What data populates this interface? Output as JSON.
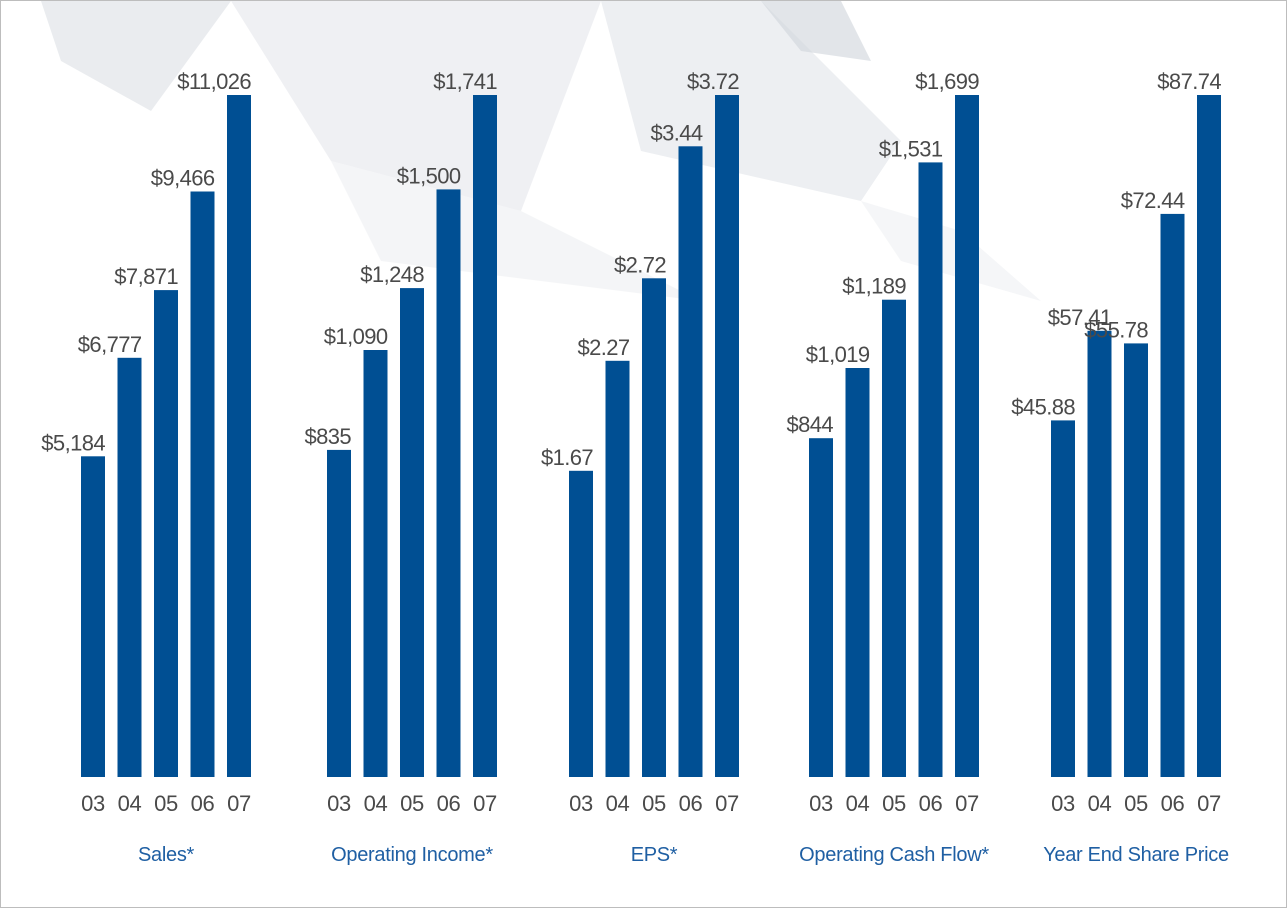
{
  "colors": {
    "bar": "#004f93",
    "value_text": "#4a4a4a",
    "title_text": "#1f5fa3",
    "background": "#ffffff",
    "decoration": "#d9dce2"
  },
  "chart_data": [
    {
      "type": "bar",
      "title": "Sales*",
      "categories": [
        "03",
        "04",
        "05",
        "06",
        "07"
      ],
      "values": [
        5184,
        6777,
        7871,
        9466,
        11026
      ],
      "value_labels": [
        "$5,184",
        "$6,777",
        "$7,871",
        "$9,466",
        "$11,026"
      ],
      "ylim": [
        0,
        11026
      ],
      "grid": false,
      "legend": "none"
    },
    {
      "type": "bar",
      "title": "Operating Income*",
      "categories": [
        "03",
        "04",
        "05",
        "06",
        "07"
      ],
      "values": [
        835,
        1090,
        1248,
        1500,
        1741
      ],
      "value_labels": [
        "$835",
        "$1,090",
        "$1,248",
        "$1,500",
        "$1,741"
      ],
      "ylim": [
        0,
        1741
      ],
      "grid": false,
      "legend": "none"
    },
    {
      "type": "bar",
      "title": "EPS*",
      "categories": [
        "03",
        "04",
        "05",
        "06",
        "07"
      ],
      "values": [
        1.67,
        2.27,
        2.72,
        3.44,
        3.72
      ],
      "value_labels": [
        "$1.67",
        "$2.27",
        "$2.72",
        "$3.44",
        "$3.72"
      ],
      "ylim": [
        0,
        3.72
      ],
      "grid": false,
      "legend": "none"
    },
    {
      "type": "bar",
      "title": "Operating Cash Flow*",
      "categories": [
        "03",
        "04",
        "05",
        "06",
        "07"
      ],
      "values": [
        844,
        1019,
        1189,
        1531,
        1699
      ],
      "value_labels": [
        "$844",
        "$1,019",
        "$1,189",
        "$1,531",
        "$1,699"
      ],
      "ylim": [
        0,
        1699
      ],
      "grid": false,
      "legend": "none"
    },
    {
      "type": "bar",
      "title": "Year End Share Price",
      "categories": [
        "03",
        "04",
        "05",
        "06",
        "07"
      ],
      "values": [
        45.88,
        57.41,
        55.78,
        72.44,
        87.74
      ],
      "value_labels": [
        "$45.88",
        "$57.41",
        "$55.78",
        "$72.44",
        "$87.74"
      ],
      "ylim": [
        0,
        87.74
      ],
      "grid": false,
      "legend": "none"
    }
  ]
}
